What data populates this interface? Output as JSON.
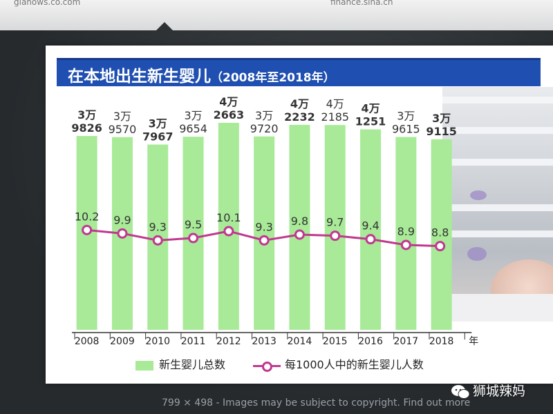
{
  "browser": {
    "url_left": "gianows.co.com",
    "url_right": "finance.sina.cn"
  },
  "chart_title": "在本地出生新生婴儿",
  "chart_subtitle": "（2008年至2018年）",
  "chart_data": {
    "type": "bar",
    "categories": [
      "2008",
      "2009",
      "2010",
      "2011",
      "2012",
      "2013",
      "2014",
      "2015",
      "2016",
      "2017",
      "2018"
    ],
    "x_unit": "年",
    "series": [
      {
        "name": "新生婴儿总数",
        "type": "bar",
        "values": [
          39826,
          39570,
          37967,
          39654,
          42663,
          39720,
          42232,
          42185,
          41251,
          39615,
          39115
        ],
        "labels_top": [
          "3万",
          "3万",
          "3万",
          "3万",
          "4万",
          "3万",
          "4万",
          "4万",
          "4万",
          "3万",
          "3万"
        ],
        "labels_bottom": [
          "9826",
          "9570",
          "7967",
          "9654",
          "2663",
          "9720",
          "2232",
          "2185",
          "1251",
          "9615",
          "9115"
        ],
        "color": "#a8ea98"
      },
      {
        "name": "每1000人中的新生婴儿人数",
        "type": "line",
        "values": [
          10.2,
          9.9,
          9.3,
          9.5,
          10.1,
          9.3,
          9.8,
          9.7,
          9.4,
          8.9,
          8.8
        ],
        "color": "#c0388f"
      }
    ],
    "bar_ylim": [
      0,
      44000
    ],
    "line_ylim": [
      0,
      16
    ],
    "legend_position": "bottom"
  },
  "legend": {
    "bar_label": "新生婴儿总数",
    "line_label": "每1000人中的新生婴儿人数"
  },
  "caption": "799 × 498 - Images may be subject to copyright. Find out more",
  "watermark": "狮城辣妈"
}
